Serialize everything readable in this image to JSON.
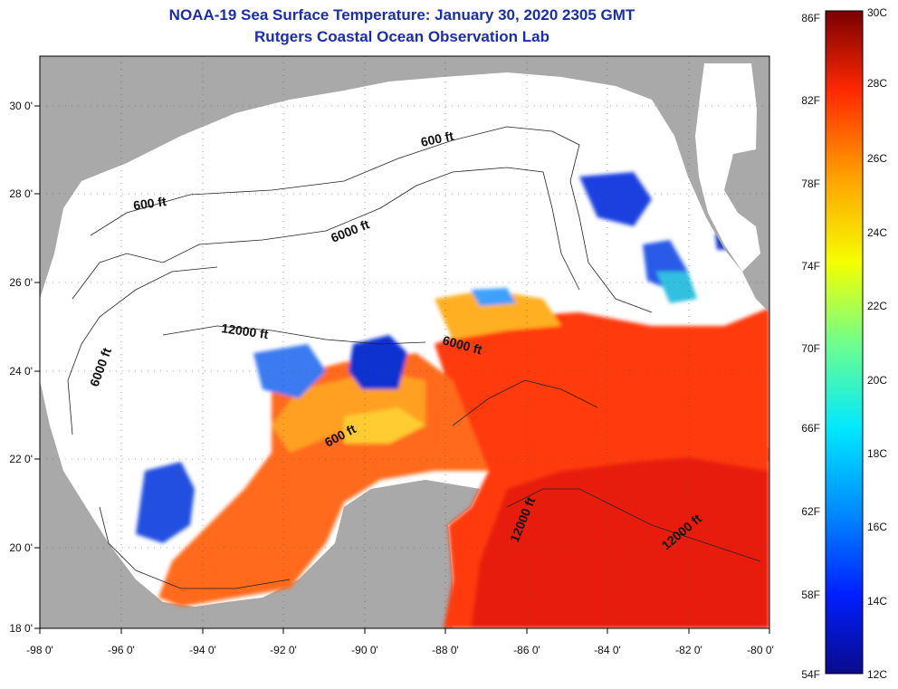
{
  "title": {
    "line1": "NOAA-19 Sea Surface Temperature:  January 30, 2020 2305 GMT",
    "line2": "Rutgers Coastal Ocean Observation Lab"
  },
  "axes": {
    "longitude_labels": [
      "-98 0'",
      "-96 0'",
      "-94 0'",
      "-92 0'",
      "-90 0'",
      "-88 0'",
      "-86 0'",
      "-84 0'",
      "-82 0'",
      "-80 0'"
    ],
    "latitude_labels": [
      "30 0'",
      "28 0'",
      "26 0'",
      "24 0'",
      "22 0'",
      "20 0'",
      "18 0'"
    ]
  },
  "contours": {
    "depth_labels": [
      "600 ft",
      "600 ft",
      "6000 ft",
      "6000 ft",
      "12000 ft",
      "6000 ft",
      "600 ft",
      "12000 ft",
      "12000 ft"
    ]
  },
  "colorbar": {
    "fahrenheit_labels": [
      "86F",
      "82F",
      "78F",
      "74F",
      "70F",
      "66F",
      "62F",
      "58F",
      "54F"
    ],
    "celsius_labels": [
      "30C",
      "28C",
      "26C",
      "24C",
      "22C",
      "20C",
      "18C",
      "16C",
      "14C",
      "12C"
    ]
  },
  "colors": {
    "land": "#a9a9a9",
    "cloud": "#ffffff",
    "title": "#1a2ea8"
  }
}
